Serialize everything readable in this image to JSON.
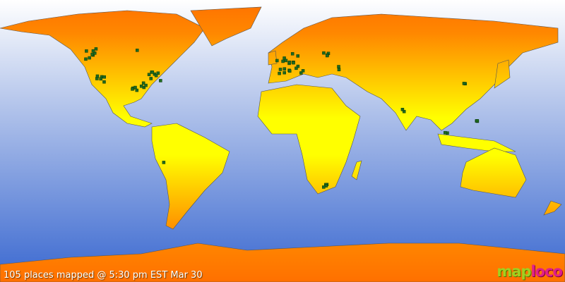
{
  "map": {
    "caption": "105 places mapped @ 5:30 pm EST Mar 30",
    "logo": {
      "part1": "map",
      "part2": "loco"
    },
    "colors": {
      "ocean_top": "#ffffff",
      "ocean_bottom": "#3a68d0",
      "land_pole": "#ff7a00",
      "land_equator": "#ffff00",
      "marker": "#1f6a1f"
    },
    "marker_icon": "green-square-marker"
  }
}
